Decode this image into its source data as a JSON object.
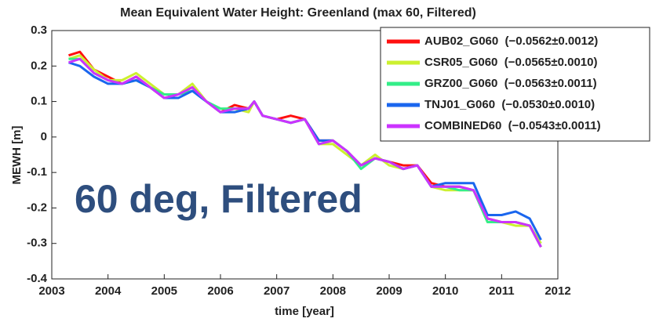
{
  "chart_data": {
    "type": "line",
    "title": "Mean Equivalent Water Height: Greenland (max 60, Filtered)",
    "xlabel": "time [year]",
    "ylabel": "MEWH [m]",
    "annotation": "60 deg, Filtered",
    "xlim": [
      2003,
      2012
    ],
    "xticks": [
      2003,
      2004,
      2005,
      2006,
      2007,
      2008,
      2009,
      2010,
      2011,
      2012
    ],
    "ylim": [
      -0.4,
      0.3
    ],
    "yticks": [
      -0.4,
      -0.3,
      -0.2,
      -0.1,
      0,
      0.1,
      0.2,
      0.3
    ],
    "grid": false,
    "legend": "upper right",
    "x": [
      2003.3,
      2003.5,
      2003.75,
      2004.0,
      2004.25,
      2004.5,
      2004.75,
      2005.0,
      2005.25,
      2005.5,
      2005.75,
      2006.0,
      2006.25,
      2006.5,
      2006.6,
      2006.75,
      2007.0,
      2007.25,
      2007.5,
      2007.75,
      2008.0,
      2008.25,
      2008.5,
      2008.75,
      2009.0,
      2009.25,
      2009.5,
      2009.75,
      2010.0,
      2010.25,
      2010.5,
      2010.75,
      2011.0,
      2011.25,
      2011.5,
      2011.7
    ],
    "series": [
      {
        "name": "AUB02_G060  (−0.0562±0.0012)",
        "color": "#ff1010",
        "values": [
          0.23,
          0.24,
          0.19,
          0.17,
          0.15,
          0.17,
          0.14,
          0.11,
          0.12,
          0.14,
          0.1,
          0.07,
          0.09,
          0.08,
          0.1,
          0.06,
          0.05,
          0.06,
          0.05,
          -0.01,
          -0.01,
          -0.04,
          -0.08,
          -0.06,
          -0.07,
          -0.08,
          -0.08,
          -0.13,
          -0.14,
          -0.14,
          -0.15,
          -0.23,
          -0.24,
          -0.24,
          -0.25,
          -0.31
        ]
      },
      {
        "name": "CSR05_G060  (−0.0565±0.0010)",
        "color": "#ccf030",
        "values": [
          0.22,
          0.23,
          0.19,
          0.16,
          0.16,
          0.18,
          0.15,
          0.12,
          0.12,
          0.15,
          0.1,
          0.07,
          0.08,
          0.07,
          0.1,
          0.06,
          0.05,
          0.04,
          0.05,
          -0.02,
          -0.02,
          -0.05,
          -0.08,
          -0.05,
          -0.08,
          -0.09,
          -0.08,
          -0.14,
          -0.15,
          -0.15,
          -0.15,
          -0.24,
          -0.24,
          -0.25,
          -0.25,
          -0.3
        ]
      },
      {
        "name": "GRZ00_G060  (−0.0563±0.0011)",
        "color": "#33ee88",
        "values": [
          0.22,
          0.22,
          0.18,
          0.16,
          0.15,
          0.16,
          0.14,
          0.12,
          0.12,
          0.13,
          0.1,
          0.08,
          0.08,
          0.08,
          0.1,
          0.06,
          0.05,
          0.04,
          0.05,
          -0.02,
          -0.01,
          -0.04,
          -0.09,
          -0.06,
          -0.07,
          -0.09,
          -0.08,
          -0.14,
          -0.14,
          -0.15,
          -0.15,
          -0.24,
          -0.24,
          -0.24,
          -0.25,
          -0.31
        ]
      },
      {
        "name": "TNJ01_G060  (−0.0530±0.0010)",
        "color": "#1a66ee",
        "values": [
          0.21,
          0.2,
          0.17,
          0.15,
          0.15,
          0.16,
          0.14,
          0.11,
          0.11,
          0.13,
          0.1,
          0.07,
          0.07,
          0.08,
          0.1,
          0.06,
          0.05,
          0.04,
          0.05,
          -0.01,
          -0.01,
          -0.04,
          -0.08,
          -0.06,
          -0.07,
          -0.09,
          -0.08,
          -0.14,
          -0.13,
          -0.13,
          -0.13,
          -0.22,
          -0.22,
          -0.21,
          -0.23,
          -0.29
        ]
      },
      {
        "name": "COMBINED60  (−0.0543±0.0011)",
        "color": "#cc33ff",
        "values": [
          0.21,
          0.22,
          0.18,
          0.16,
          0.15,
          0.17,
          0.14,
          0.11,
          0.12,
          0.14,
          0.1,
          0.07,
          0.08,
          0.08,
          0.1,
          0.06,
          0.05,
          0.04,
          0.05,
          -0.02,
          -0.01,
          -0.04,
          -0.08,
          -0.06,
          -0.07,
          -0.09,
          -0.08,
          -0.14,
          -0.14,
          -0.14,
          -0.15,
          -0.23,
          -0.24,
          -0.24,
          -0.25,
          -0.31
        ]
      }
    ]
  }
}
